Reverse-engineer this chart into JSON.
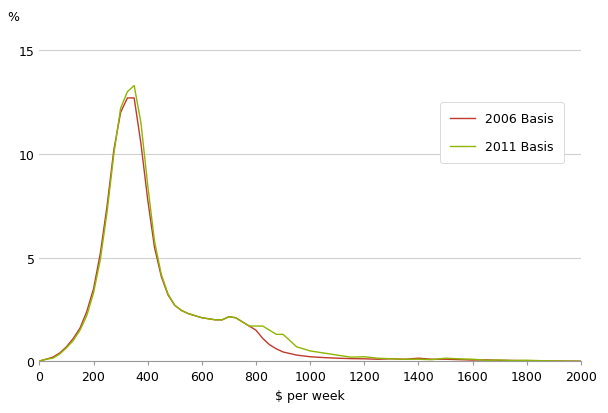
{
  "x_2006": [
    0,
    10,
    25,
    50,
    75,
    100,
    125,
    150,
    175,
    200,
    225,
    250,
    275,
    300,
    325,
    350,
    375,
    400,
    425,
    450,
    475,
    500,
    525,
    550,
    575,
    600,
    625,
    650,
    675,
    700,
    725,
    750,
    775,
    800,
    825,
    850,
    875,
    900,
    950,
    1000,
    1050,
    1100,
    1150,
    1200,
    1250,
    1300,
    1350,
    1400,
    1450,
    1500,
    1550,
    1600,
    1650,
    1700,
    1750,
    1800,
    1850,
    1900,
    1950,
    2000
  ],
  "y_2006": [
    0.0,
    0.05,
    0.1,
    0.2,
    0.4,
    0.7,
    1.1,
    1.6,
    2.4,
    3.5,
    5.2,
    7.5,
    10.2,
    12.0,
    12.7,
    12.7,
    10.5,
    7.8,
    5.5,
    4.1,
    3.2,
    2.7,
    2.45,
    2.3,
    2.2,
    2.1,
    2.05,
    2.0,
    2.0,
    2.15,
    2.1,
    1.9,
    1.7,
    1.5,
    1.1,
    0.8,
    0.6,
    0.45,
    0.3,
    0.22,
    0.18,
    0.15,
    0.13,
    0.12,
    0.1,
    0.12,
    0.1,
    0.15,
    0.1,
    0.1,
    0.08,
    0.06,
    0.07,
    0.05,
    0.04,
    0.03,
    0.02,
    0.02,
    0.01,
    0.01
  ],
  "x_2011": [
    0,
    10,
    25,
    50,
    75,
    100,
    125,
    150,
    175,
    200,
    225,
    250,
    275,
    300,
    325,
    350,
    375,
    400,
    425,
    450,
    475,
    500,
    525,
    550,
    575,
    600,
    625,
    650,
    675,
    700,
    725,
    750,
    775,
    800,
    825,
    850,
    875,
    900,
    950,
    1000,
    1050,
    1100,
    1150,
    1200,
    1250,
    1300,
    1350,
    1400,
    1450,
    1500,
    1550,
    1600,
    1650,
    1700,
    1750,
    1800,
    1850,
    1900,
    1950,
    2000
  ],
  "y_2011": [
    0.0,
    0.05,
    0.1,
    0.15,
    0.35,
    0.65,
    1.0,
    1.5,
    2.2,
    3.3,
    4.9,
    7.2,
    10.0,
    12.2,
    13.0,
    13.3,
    11.5,
    8.5,
    5.8,
    4.2,
    3.25,
    2.7,
    2.45,
    2.3,
    2.2,
    2.1,
    2.05,
    2.0,
    2.0,
    2.15,
    2.1,
    1.9,
    1.7,
    1.7,
    1.7,
    1.5,
    1.3,
    1.3,
    0.7,
    0.5,
    0.4,
    0.3,
    0.2,
    0.22,
    0.15,
    0.12,
    0.1,
    0.1,
    0.08,
    0.15,
    0.12,
    0.1,
    0.05,
    0.06,
    0.04,
    0.05,
    0.03,
    0.02,
    0.01,
    0.0
  ],
  "color_2006": "#c0392b",
  "color_2011": "#8db600",
  "label_2006": "2006 Basis",
  "label_2011": "2011 Basis",
  "xlabel": "$ per week",
  "ylabel": "%",
  "xlim": [
    0,
    2000
  ],
  "ylim": [
    0,
    16
  ],
  "yticks": [
    0,
    5,
    10,
    15
  ],
  "xticks": [
    0,
    200,
    400,
    600,
    800,
    1000,
    1200,
    1400,
    1600,
    1800,
    2000
  ],
  "background_color": "#ffffff",
  "grid_color": "#d0d0d0"
}
